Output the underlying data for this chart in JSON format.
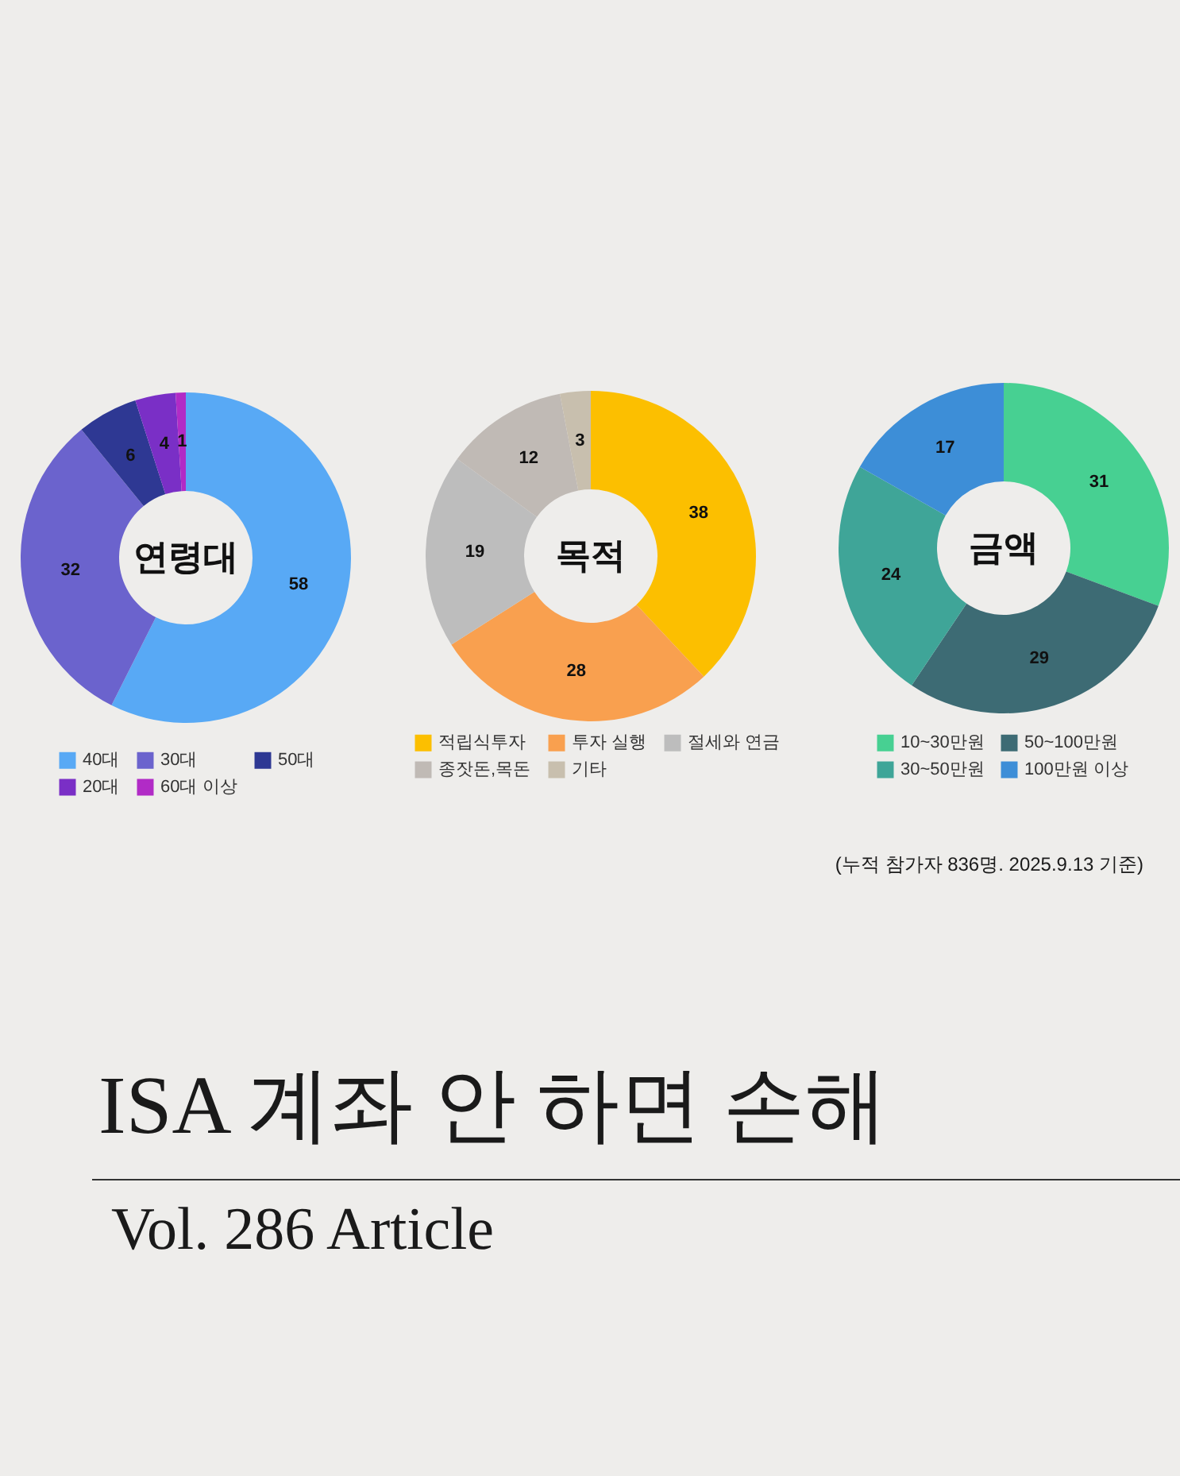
{
  "chart_data": [
    {
      "type": "donut",
      "title": "연령대",
      "categories": [
        "40대",
        "30대",
        "50대",
        "20대",
        "60대 이상"
      ],
      "values": [
        58,
        32,
        6,
        4,
        1
      ],
      "colors": [
        "#58a9f5",
        "#6b63cd",
        "#2e3893",
        "#7a2fc6",
        "#b12bc6"
      ],
      "data_labels": true,
      "legend": "bottom"
    },
    {
      "type": "donut",
      "title": "목적",
      "categories": [
        "적립식투자",
        "투자 실행",
        "절세와 연금",
        "종잣돈,목돈",
        "기타"
      ],
      "values": [
        38,
        28,
        19,
        12,
        3
      ],
      "colors": [
        "#fcbf00",
        "#f9a04f",
        "#bdbdbd",
        "#c0bab5",
        "#c8bfae"
      ],
      "data_labels": true,
      "legend": "bottom"
    },
    {
      "type": "donut",
      "title": "금액",
      "categories": [
        "10~30만원",
        "50~100만원",
        "30~50만원",
        "100만원 이상"
      ],
      "values": [
        31,
        29,
        24,
        17
      ],
      "colors": [
        "#47d092",
        "#3d6b74",
        "#3fa598",
        "#3d8ed7"
      ],
      "data_labels": true,
      "legend": "bottom",
      "annotations": [
        "(누적 참가자 836명. 2025.9.13 기준)",
        "ISA 계좌 안 하면 손해",
        "Vol. 286 Article"
      ]
    }
  ]
}
